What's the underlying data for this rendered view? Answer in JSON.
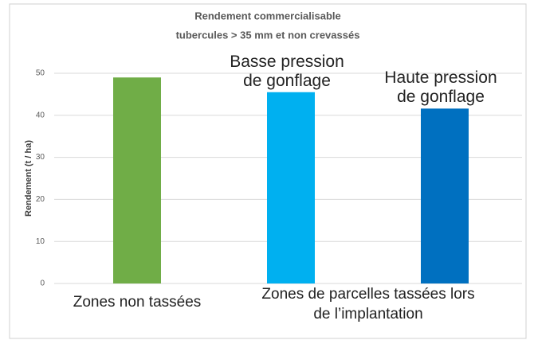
{
  "chart_data": {
    "type": "bar",
    "title": "Rendement commercialisable",
    "subtitle": "tubercules > 35 mm et non crevassés",
    "y_label": "Rendement (t / ha)",
    "categories": [
      "Zones non tassées",
      "Basse pression de gonflage",
      "Haute pression de gonflage"
    ],
    "group_label": "Zones de parcelles tassées lors de l’implantation",
    "values": [
      49,
      45.5,
      41.6
    ],
    "colors": [
      "#70ad47",
      "#00b0f0",
      "#0070c0"
    ],
    "ylim": [
      0,
      50
    ],
    "yticks": [
      0,
      10,
      20,
      30,
      40,
      50
    ],
    "grid": true
  }
}
